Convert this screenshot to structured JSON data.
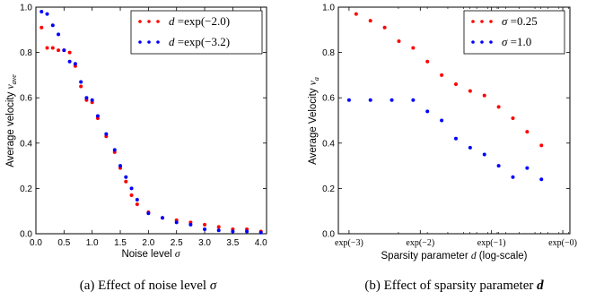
{
  "chart_data": [
    {
      "type": "scatter",
      "caption": "(a)  Effect of noise level σ",
      "xlabel": "Noise level σ",
      "ylabel": "Average velocity v_ave",
      "xlim": [
        0,
        4.1
      ],
      "ylim": [
        0,
        1.0
      ],
      "x_ticks": [
        "0.0",
        "0.5",
        "1.0",
        "1.5",
        "2.0",
        "2.5",
        "3.0",
        "3.5",
        "4.0"
      ],
      "y_ticks": [
        "0.0",
        "0.2",
        "0.4",
        "0.6",
        "0.8",
        "1.0"
      ],
      "legend_position": "top-right",
      "series": [
        {
          "name": "d = exp(−2.0)",
          "color": "#ff0000",
          "points": [
            [
              0.1,
              0.91
            ],
            [
              0.2,
              0.82
            ],
            [
              0.3,
              0.82
            ],
            [
              0.4,
              0.81
            ],
            [
              0.5,
              0.81
            ],
            [
              0.6,
              0.8
            ],
            [
              0.7,
              0.74
            ],
            [
              0.8,
              0.65
            ],
            [
              0.9,
              0.59
            ],
            [
              1.0,
              0.58
            ],
            [
              1.1,
              0.51
            ],
            [
              1.25,
              0.43
            ],
            [
              1.4,
              0.36
            ],
            [
              1.5,
              0.29
            ],
            [
              1.6,
              0.23
            ],
            [
              1.7,
              0.17
            ],
            [
              1.8,
              0.13
            ],
            [
              2.0,
              0.095
            ],
            [
              2.25,
              0.07
            ],
            [
              2.5,
              0.06
            ],
            [
              2.75,
              0.05
            ],
            [
              3.0,
              0.04
            ],
            [
              3.25,
              0.03
            ],
            [
              3.5,
              0.02
            ],
            [
              3.75,
              0.02
            ],
            [
              4.0,
              0.01
            ]
          ]
        },
        {
          "name": "d = exp(−3.2)",
          "color": "#0000ff",
          "points": [
            [
              0.1,
              0.98
            ],
            [
              0.2,
              0.97
            ],
            [
              0.3,
              0.92
            ],
            [
              0.4,
              0.88
            ],
            [
              0.5,
              0.81
            ],
            [
              0.6,
              0.76
            ],
            [
              0.7,
              0.75
            ],
            [
              0.8,
              0.67
            ],
            [
              0.9,
              0.6
            ],
            [
              1.0,
              0.59
            ],
            [
              1.1,
              0.52
            ],
            [
              1.25,
              0.44
            ],
            [
              1.4,
              0.37
            ],
            [
              1.5,
              0.3
            ],
            [
              1.6,
              0.25
            ],
            [
              1.7,
              0.2
            ],
            [
              1.8,
              0.15
            ],
            [
              2.0,
              0.09
            ],
            [
              2.25,
              0.07
            ],
            [
              2.5,
              0.05
            ],
            [
              2.75,
              0.04
            ],
            [
              3.0,
              0.02
            ],
            [
              3.25,
              0.015
            ],
            [
              3.5,
              0.01
            ],
            [
              3.75,
              0.01
            ],
            [
              4.0,
              0.005
            ]
          ]
        }
      ]
    },
    {
      "type": "scatter",
      "caption": "(b)  Effect of sparsity parameter d",
      "xlabel": "Sparsity parameter d (log-scale)",
      "ylabel": "Average Velocity v_a",
      "x_scale": "log (natural exponent)",
      "xlim": [
        -3.15,
        0.1
      ],
      "ylim": [
        0,
        1.0
      ],
      "x_ticks": [
        "exp(−3)",
        "exp(−2)",
        "exp(−1)",
        "exp(−0)"
      ],
      "y_ticks": [
        "0.0",
        "0.2",
        "0.4",
        "0.6",
        "0.8",
        "1.0"
      ],
      "legend_position": "top-right",
      "series": [
        {
          "name": "σ = 0.25",
          "color": "#ff0000",
          "points": [
            [
              -2.9,
              0.97
            ],
            [
              -2.7,
              0.94
            ],
            [
              -2.5,
              0.91
            ],
            [
              -2.3,
              0.85
            ],
            [
              -2.1,
              0.82
            ],
            [
              -1.9,
              0.76
            ],
            [
              -1.7,
              0.7
            ],
            [
              -1.5,
              0.66
            ],
            [
              -1.3,
              0.63
            ],
            [
              -1.1,
              0.61
            ],
            [
              -0.9,
              0.56
            ],
            [
              -0.7,
              0.51
            ],
            [
              -0.5,
              0.45
            ],
            [
              -0.3,
              0.39
            ]
          ]
        },
        {
          "name": "σ = 1.0",
          "color": "#0000ff",
          "points": [
            [
              -3.0,
              0.59
            ],
            [
              -2.7,
              0.59
            ],
            [
              -2.4,
              0.59
            ],
            [
              -2.1,
              0.59
            ],
            [
              -1.9,
              0.54
            ],
            [
              -1.7,
              0.5
            ],
            [
              -1.5,
              0.42
            ],
            [
              -1.3,
              0.38
            ],
            [
              -1.1,
              0.35
            ],
            [
              -0.9,
              0.3
            ],
            [
              -0.7,
              0.25
            ],
            [
              -0.5,
              0.29
            ],
            [
              -0.3,
              0.24
            ]
          ]
        }
      ]
    }
  ]
}
